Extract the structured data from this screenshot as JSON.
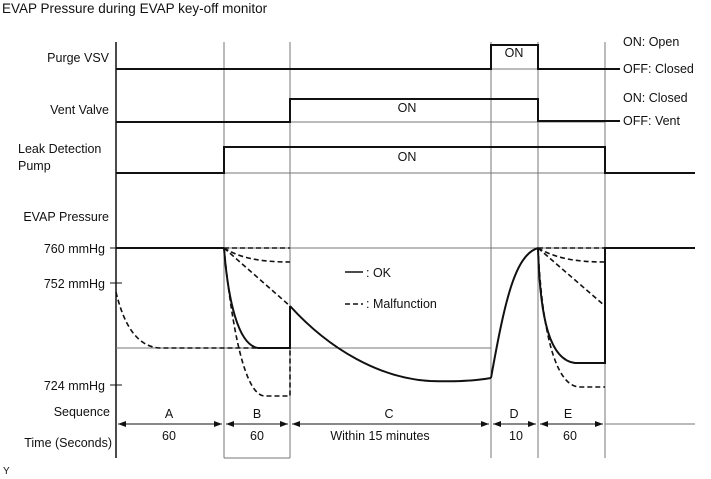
{
  "title": "EVAP Pressure during EVAP key-off monitor",
  "rows": {
    "purge_vsv": "Purge VSV",
    "vent_valve": "Vent Valve",
    "leak_pump_1": "Leak Detection",
    "leak_pump_2": "Pump",
    "evap_pressure": "EVAP Pressure"
  },
  "on_label": "ON",
  "state_labels": {
    "purge_on": "ON: Open",
    "purge_off": "OFF: Closed",
    "vent_on": "ON: Closed",
    "vent_off": "OFF: Vent"
  },
  "pressure_ticks": [
    "760 mmHg",
    "752 mmHg",
    "724 mmHg"
  ],
  "legend": {
    "ok": ": OK",
    "malfunction": ": Malfunction"
  },
  "sequence_label": "Sequence",
  "time_label": "Time (Seconds)",
  "sequences": [
    {
      "name": "A",
      "time": "60"
    },
    {
      "name": "B",
      "time": "60"
    },
    {
      "name": "C",
      "time": "Within 15 minutes"
    },
    {
      "name": "D",
      "time": "10"
    },
    {
      "name": "E",
      "time": "60"
    }
  ],
  "footer_mark": "Y"
}
